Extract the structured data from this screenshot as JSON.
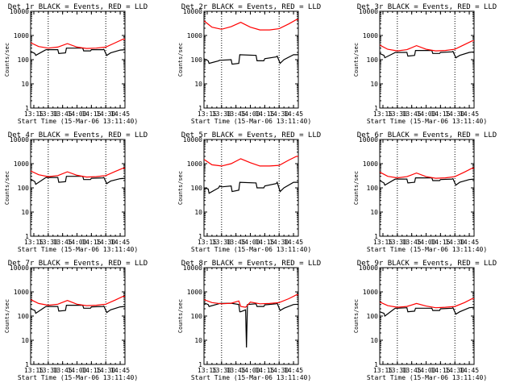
{
  "chart_data": [
    {
      "type": "line",
      "title": "Det 1r BLACK = Events, RED = LLD",
      "xlabel": "Start Time (15-Mar-06 13:11:40)",
      "ylabel": "Counts/sec",
      "yscale": "log",
      "ylim": [
        1,
        10000
      ],
      "xlim": [
        "13:11:40",
        "14:50:00"
      ],
      "x_ticks": [
        "13:15",
        "13:30",
        "13:45",
        "14:00",
        "14:15",
        "14:30",
        "14:45"
      ],
      "y_ticks": [
        "1",
        "10",
        "100",
        "1000",
        "10000"
      ],
      "vlines": [
        "13:30",
        "14:30"
      ],
      "series": [
        {
          "color": "#000000",
          "x": [
            "13:11:40",
            "13:16",
            "13:17",
            "13:27",
            "13:28",
            "13:30",
            "13:40",
            "13:41",
            "13:48",
            "13:49",
            "14:06",
            "14:07",
            "14:14",
            "14:15",
            "14:27",
            "14:28",
            "14:31",
            "14:35",
            "14:45",
            "14:50"
          ],
          "y": [
            220,
            180,
            150,
            250,
            260,
            260,
            260,
            180,
            190,
            300,
            300,
            230,
            230,
            260,
            260,
            270,
            150,
            190,
            250,
            260
          ]
        },
        {
          "color": "#ff0000",
          "x": [
            "13:11:40",
            "13:20",
            "13:30",
            "13:40",
            "13:50",
            "14:00",
            "14:10",
            "14:20",
            "14:30",
            "14:40",
            "14:48",
            "14:50"
          ],
          "y": [
            500,
            350,
            300,
            330,
            460,
            330,
            290,
            300,
            330,
            500,
            700,
            700
          ]
        }
      ]
    },
    {
      "type": "line",
      "title": "Det 2r BLACK = Events, RED = LLD",
      "xlabel": "Start Time (15-Mar-06 13:11:40)",
      "ylabel": "Counts/sec",
      "yscale": "log",
      "ylim": [
        1,
        10000
      ],
      "xlim": [
        "13:11:40",
        "14:50:00"
      ],
      "x_ticks": [
        "13:15",
        "13:30",
        "13:45",
        "14:00",
        "14:15",
        "14:30",
        "14:45"
      ],
      "y_ticks": [
        "1",
        "10",
        "100",
        "1000",
        "10000"
      ],
      "vlines": [
        "13:30",
        "14:30"
      ],
      "series": [
        {
          "color": "#000000",
          "x": [
            "13:11:40",
            "13:16",
            "13:17",
            "13:27",
            "13:28",
            "13:30",
            "13:40",
            "13:41",
            "13:48",
            "13:49",
            "14:06",
            "14:07",
            "14:14",
            "14:15",
            "14:27",
            "14:28",
            "14:31",
            "14:35",
            "14:45",
            "14:50"
          ],
          "y": [
            110,
            90,
            70,
            90,
            95,
            95,
            100,
            65,
            70,
            160,
            150,
            90,
            90,
            110,
            130,
            140,
            70,
            100,
            160,
            160
          ]
        },
        {
          "color": "#ff0000",
          "x": [
            "13:11:40",
            "13:20",
            "13:30",
            "13:40",
            "13:50",
            "14:00",
            "14:10",
            "14:20",
            "14:30",
            "14:40",
            "14:48",
            "14:50"
          ],
          "y": [
            4000,
            2200,
            1800,
            2300,
            3500,
            2200,
            1700,
            1700,
            1900,
            3000,
            4500,
            4500
          ]
        }
      ]
    },
    {
      "type": "line",
      "title": "Det 3r BLACK = Events, RED = LLD",
      "xlabel": "Start Time (15-Mar-06 13:11:40)",
      "ylabel": "Counts/sec",
      "yscale": "log",
      "ylim": [
        1,
        10000
      ],
      "xlim": [
        "13:11:40",
        "14:50:00"
      ],
      "x_ticks": [
        "13:15",
        "13:30",
        "13:45",
        "14:00",
        "14:15",
        "14:30",
        "14:45"
      ],
      "y_ticks": [
        "1",
        "10",
        "100",
        "1000",
        "10000"
      ],
      "vlines": [
        "13:30",
        "14:30"
      ],
      "series": [
        {
          "color": "#000000",
          "x": [
            "13:11:40",
            "13:16",
            "13:17",
            "13:27",
            "13:28",
            "13:30",
            "13:40",
            "13:41",
            "13:48",
            "13:49",
            "14:06",
            "14:07",
            "14:14",
            "14:15",
            "14:27",
            "14:28",
            "14:31",
            "14:35",
            "14:45",
            "14:50"
          ],
          "y": [
            180,
            150,
            120,
            190,
            200,
            200,
            200,
            140,
            150,
            240,
            240,
            180,
            180,
            200,
            210,
            220,
            120,
            150,
            200,
            210
          ]
        },
        {
          "color": "#ff0000",
          "x": [
            "13:11:40",
            "13:20",
            "13:30",
            "13:40",
            "13:50",
            "14:00",
            "14:10",
            "14:20",
            "14:30",
            "14:40",
            "14:48",
            "14:50"
          ],
          "y": [
            400,
            270,
            230,
            260,
            380,
            270,
            230,
            240,
            270,
            420,
            600,
            600
          ]
        }
      ]
    },
    {
      "type": "line",
      "title": "Det 4r BLACK = Events, RED = LLD",
      "xlabel": "Start Time (15-Mar-06 13:11:40)",
      "ylabel": "Counts/sec",
      "yscale": "log",
      "ylim": [
        1,
        10000
      ],
      "xlim": [
        "13:11:40",
        "14:50:00"
      ],
      "x_ticks": [
        "13:15",
        "13:30",
        "13:45",
        "14:00",
        "14:15",
        "14:30",
        "14:45"
      ],
      "y_ticks": [
        "1",
        "10",
        "100",
        "1000",
        "10000"
      ],
      "vlines": [
        "13:30",
        "14:30"
      ],
      "series": [
        {
          "color": "#000000",
          "x": [
            "13:11:40",
            "13:16",
            "13:17",
            "13:27",
            "13:28",
            "13:30",
            "13:40",
            "13:41",
            "13:48",
            "13:49",
            "14:06",
            "14:07",
            "14:14",
            "14:15",
            "14:27",
            "14:28",
            "14:31",
            "14:35",
            "14:45",
            "14:50"
          ],
          "y": [
            230,
            180,
            140,
            260,
            270,
            270,
            270,
            170,
            180,
            300,
            300,
            220,
            220,
            250,
            260,
            270,
            150,
            190,
            240,
            250
          ]
        },
        {
          "color": "#ff0000",
          "x": [
            "13:11:40",
            "13:20",
            "13:30",
            "13:40",
            "13:50",
            "14:00",
            "14:10",
            "14:20",
            "14:30",
            "14:40",
            "14:48",
            "14:50"
          ],
          "y": [
            500,
            350,
            290,
            320,
            460,
            330,
            280,
            290,
            320,
            480,
            650,
            650
          ]
        }
      ]
    },
    {
      "type": "line",
      "title": "Det 5r BLACK = Events, RED = LLD",
      "xlabel": "Start Time (15-Mar-06 13:11:40)",
      "ylabel": "Counts/sec",
      "yscale": "log",
      "ylim": [
        1,
        10000
      ],
      "xlim": [
        "13:11:40",
        "14:50:00"
      ],
      "x_ticks": [
        "13:15",
        "13:30",
        "13:45",
        "14:00",
        "14:15",
        "14:30",
        "14:45"
      ],
      "y_ticks": [
        "1",
        "10",
        "100",
        "1000",
        "10000"
      ],
      "vlines": [
        "13:30",
        "14:30"
      ],
      "series": [
        {
          "color": "#000000",
          "x": [
            "13:11:40",
            "13:16",
            "13:17",
            "13:27",
            "13:28",
            "13:30",
            "13:40",
            "13:41",
            "13:48",
            "13:49",
            "14:06",
            "14:07",
            "14:14",
            "14:15",
            "14:27",
            "14:28",
            "14:31",
            "14:35",
            "14:45",
            "14:50"
          ],
          "y": [
            100,
            90,
            60,
            100,
            120,
            110,
            120,
            70,
            80,
            170,
            160,
            100,
            100,
            120,
            150,
            170,
            70,
            100,
            170,
            170
          ]
        },
        {
          "color": "#ff0000",
          "x": [
            "13:11:40",
            "13:20",
            "13:30",
            "13:40",
            "13:50",
            "14:00",
            "14:10",
            "14:20",
            "14:30",
            "14:40",
            "14:48",
            "14:50"
          ],
          "y": [
            1500,
            900,
            800,
            1000,
            1600,
            1100,
            800,
            800,
            850,
            1400,
            2000,
            2000
          ]
        }
      ]
    },
    {
      "type": "line",
      "title": "Det 6r BLACK = Events, RED = LLD",
      "xlabel": "Start Time (15-Mar-06 13:11:40)",
      "ylabel": "Counts/sec",
      "yscale": "log",
      "ylim": [
        1,
        10000
      ],
      "xlim": [
        "13:11:40",
        "14:50:00"
      ],
      "x_ticks": [
        "13:15",
        "13:30",
        "13:45",
        "14:00",
        "14:15",
        "14:30",
        "14:45"
      ],
      "y_ticks": [
        "1",
        "10",
        "100",
        "1000",
        "10000"
      ],
      "vlines": [
        "13:30",
        "14:30"
      ],
      "series": [
        {
          "color": "#000000",
          "x": [
            "13:11:40",
            "13:16",
            "13:17",
            "13:27",
            "13:28",
            "13:30",
            "13:40",
            "13:41",
            "13:48",
            "13:49",
            "14:06",
            "14:07",
            "14:14",
            "14:15",
            "14:27",
            "14:28",
            "14:31",
            "14:35",
            "14:45",
            "14:50"
          ],
          "y": [
            200,
            160,
            130,
            220,
            230,
            230,
            230,
            160,
            170,
            260,
            260,
            200,
            200,
            220,
            230,
            240,
            130,
            170,
            220,
            230
          ]
        },
        {
          "color": "#ff0000",
          "x": [
            "13:11:40",
            "13:20",
            "13:30",
            "13:40",
            "13:50",
            "14:00",
            "14:10",
            "14:20",
            "14:30",
            "14:40",
            "14:48",
            "14:50"
          ],
          "y": [
            450,
            300,
            260,
            290,
            410,
            290,
            250,
            260,
            290,
            450,
            650,
            650
          ]
        }
      ]
    },
    {
      "type": "line",
      "title": "Det 7r BLACK = Events, RED = LLD",
      "xlabel": "Start Time (15-Mar-06 13:11:40)",
      "ylabel": "Counts/sec",
      "yscale": "log",
      "ylim": [
        1,
        10000
      ],
      "xlim": [
        "13:11:40",
        "14:50:00"
      ],
      "x_ticks": [
        "13:15",
        "13:30",
        "13:45",
        "14:00",
        "14:15",
        "14:30",
        "14:45"
      ],
      "y_ticks": [
        "1",
        "10",
        "100",
        "1000",
        "10000"
      ],
      "vlines": [
        "13:30",
        "14:30"
      ],
      "series": [
        {
          "color": "#000000",
          "x": [
            "13:11:40",
            "13:16",
            "13:17",
            "13:27",
            "13:28",
            "13:30",
            "13:40",
            "13:41",
            "13:48",
            "13:49",
            "14:06",
            "14:07",
            "14:14",
            "14:15",
            "14:27",
            "14:28",
            "14:31",
            "14:35",
            "14:45",
            "14:50"
          ],
          "y": [
            200,
            170,
            130,
            240,
            250,
            250,
            250,
            160,
            170,
            280,
            280,
            210,
            210,
            240,
            250,
            260,
            140,
            180,
            240,
            250
          ]
        },
        {
          "color": "#ff0000",
          "x": [
            "13:11:40",
            "13:20",
            "13:30",
            "13:40",
            "13:50",
            "14:00",
            "14:10",
            "14:20",
            "14:30",
            "14:40",
            "14:48",
            "14:50"
          ],
          "y": [
            480,
            330,
            280,
            310,
            440,
            310,
            270,
            280,
            310,
            460,
            650,
            650
          ]
        }
      ]
    },
    {
      "type": "line",
      "title": "Det 8r BLACK = Events, RED = LLD",
      "xlabel": "Start Time (15-Mar-06 13:11:40)",
      "ylabel": "Counts/sec",
      "yscale": "log",
      "ylim": [
        1,
        10000
      ],
      "xlim": [
        "13:11:40",
        "14:50:00"
      ],
      "x_ticks": [
        "13:15",
        "13:30",
        "13:45",
        "14:00",
        "14:15",
        "14:30",
        "14:45"
      ],
      "y_ticks": [
        "1",
        "10",
        "100",
        "1000",
        "10000"
      ],
      "vlines": [
        "13:30",
        "14:30"
      ],
      "series": [
        {
          "color": "#000000",
          "x": [
            "13:11:40",
            "13:16",
            "13:17",
            "13:27",
            "13:28",
            "13:30",
            "13:40",
            "13:48",
            "13:49",
            "13:50",
            "13:55",
            "13:56",
            "13:57",
            "14:06",
            "14:07",
            "14:14",
            "14:15",
            "14:27",
            "14:28",
            "14:31",
            "14:35",
            "14:45",
            "14:50"
          ],
          "y": [
            350,
            300,
            250,
            320,
            330,
            330,
            340,
            300,
            150,
            150,
            180,
            5,
            300,
            320,
            250,
            250,
            290,
            320,
            340,
            170,
            210,
            300,
            310
          ]
        },
        {
          "color": "#ff0000",
          "x": [
            "13:11:40",
            "13:20",
            "13:30",
            "13:40",
            "13:48",
            "13:50",
            "13:55",
            "14:00",
            "14:10",
            "14:20",
            "14:30",
            "14:40",
            "14:48",
            "14:50"
          ],
          "y": [
            480,
            360,
            320,
            340,
            420,
            250,
            230,
            380,
            320,
            330,
            360,
            520,
            750,
            750
          ]
        }
      ]
    },
    {
      "type": "line",
      "title": "Det 9r BLACK = Events, RED = LLD",
      "xlabel": "Start Time (15-Mar-06 13:11:40)",
      "ylabel": "Counts/sec",
      "yscale": "log",
      "ylim": [
        1,
        10000
      ],
      "xlim": [
        "13:11:40",
        "14:50:00"
      ],
      "x_ticks": [
        "13:15",
        "13:30",
        "13:45",
        "14:00",
        "14:15",
        "14:30",
        "14:45"
      ],
      "y_ticks": [
        "1",
        "10",
        "100",
        "1000",
        "10000"
      ],
      "vlines": [
        "13:30",
        "14:30"
      ],
      "series": [
        {
          "color": "#000000",
          "x": [
            "13:11:40",
            "13:16",
            "13:17",
            "13:27",
            "13:28",
            "13:30",
            "13:40",
            "13:41",
            "13:48",
            "13:49",
            "14:06",
            "14:07",
            "14:14",
            "14:15",
            "14:27",
            "14:28",
            "14:31",
            "14:35",
            "14:45",
            "14:50"
          ],
          "y": [
            150,
            130,
            100,
            200,
            210,
            210,
            220,
            150,
            160,
            210,
            210,
            170,
            170,
            200,
            210,
            220,
            120,
            150,
            220,
            230
          ]
        },
        {
          "color": "#ff0000",
          "x": [
            "13:11:40",
            "13:20",
            "13:30",
            "13:40",
            "13:50",
            "14:00",
            "14:10",
            "14:20",
            "14:30",
            "14:40",
            "14:48",
            "14:50"
          ],
          "y": [
            380,
            270,
            230,
            250,
            330,
            260,
            220,
            230,
            250,
            360,
            520,
            520
          ]
        }
      ]
    }
  ]
}
